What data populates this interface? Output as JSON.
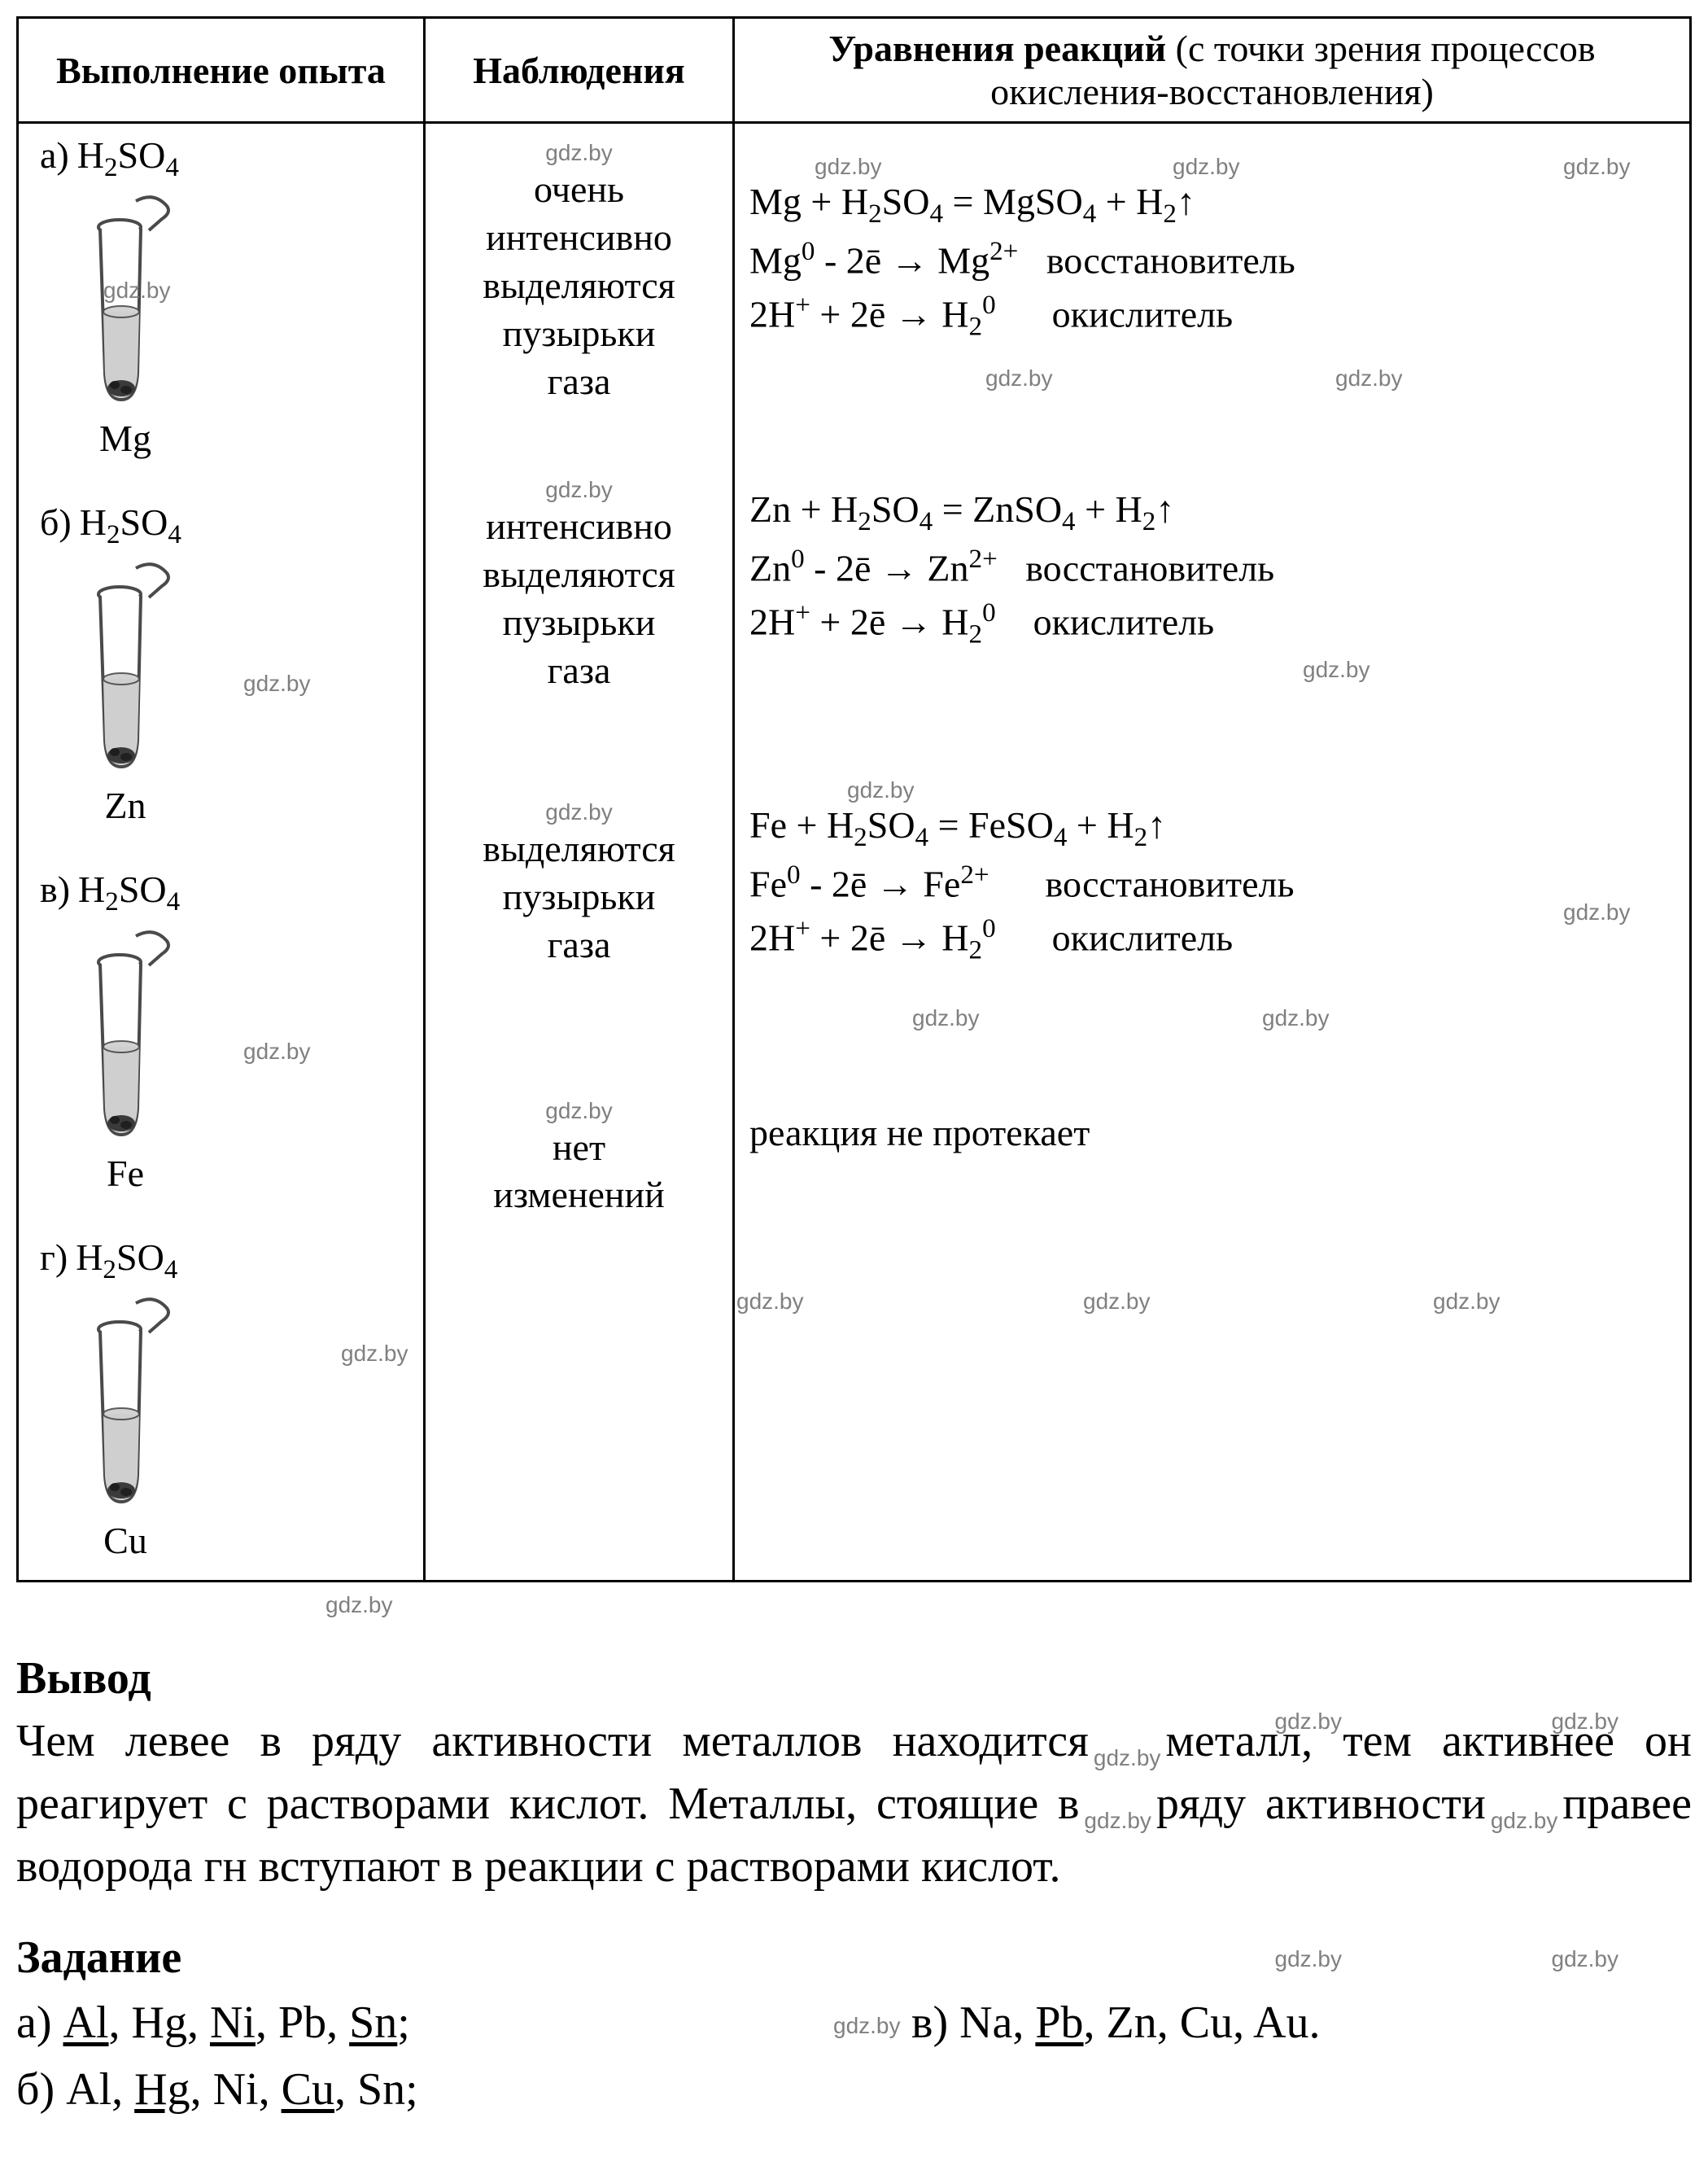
{
  "watermark": "gdz.by",
  "header": {
    "col1": "Выполнение опыта",
    "col2": "Наблюдения",
    "col3_main": "Уравнения реакций",
    "col3_sub": " (с точки зрения процессов окисления-восстановления)"
  },
  "acid_html": "H<sub>2</sub>SO<sub>4</sub>",
  "rows": [
    {
      "letter": "а)",
      "metal": "Mg",
      "observation": "очень интенсивно выделяются пузырьки газа",
      "eq_lines": [
        "Mg + H<sub>2</sub>SO<sub>4</sub> = MgSO<sub>4</sub> + H<sub>2</sub>↑",
        "Mg<sup>0</sup> - 2ē → Mg<sup>2+</sup>&nbsp;&nbsp;&nbsp;восстановитель",
        "2H<sup>+</sup> + 2ē → H<sub>2</sub><sup>0</sup>&nbsp;&nbsp;&nbsp;&nbsp;&nbsp;&nbsp;окислитель"
      ]
    },
    {
      "letter": "б)",
      "metal": "Zn",
      "observation": "интенсивно выделяются пузырьки газа",
      "eq_lines": [
        "Zn + H<sub>2</sub>SO<sub>4</sub> = ZnSO<sub>4</sub> + H<sub>2</sub>↑",
        "Zn<sup>0</sup> - 2ē → Zn<sup>2+</sup>&nbsp;&nbsp;&nbsp;восстановитель",
        "2H<sup>+</sup> + 2ē → H<sub>2</sub><sup>0</sup>&nbsp;&nbsp;&nbsp;&nbsp;окислитель"
      ]
    },
    {
      "letter": "в)",
      "metal": "Fe",
      "observation": "выделяются пузырьки газа",
      "eq_lines": [
        "Fe + H<sub>2</sub>SO<sub>4</sub> = FeSO<sub>4</sub> + H<sub>2</sub>↑",
        "Fe<sup>0</sup> - 2ē → Fe<sup>2+</sup>&nbsp;&nbsp;&nbsp;&nbsp;&nbsp;&nbsp;восстановитель",
        "2H<sup>+</sup> + 2ē → H<sub>2</sub><sup>0</sup>&nbsp;&nbsp;&nbsp;&nbsp;&nbsp;&nbsp;окислитель"
      ]
    },
    {
      "letter": "г)",
      "metal": "Cu",
      "observation": "нет изменений",
      "eq_lines": [
        "реакция не протекает"
      ]
    }
  ],
  "tube_svg": {
    "stroke": "#4a4a4a",
    "fill_liquid": "#cfcfcf",
    "fill_solid": "#3a3a3a"
  },
  "conclusion": {
    "title": "Вывод",
    "text": "Чем левее в ряду активности металлов находится металл, тем активнее он реагирует с растворами кислот. Металлы, стоящие в ряду активности правее водорода гн вступают в реакции с растворами кислот."
  },
  "task": {
    "title": "Задание",
    "a_html": "а) <span class=\"u\">Al</span>, Hg, <span class=\"u\">Ni</span>, Pb, <span class=\"u\">Sn</span>;",
    "b_html": "б) Al, <span class=\"u\">Hg</span>, Ni, <span class=\"u\">Cu</span>, Sn;",
    "v_html": "в) Na, <span class=\"u\">Pb</span>, Zn, Cu, Au."
  }
}
